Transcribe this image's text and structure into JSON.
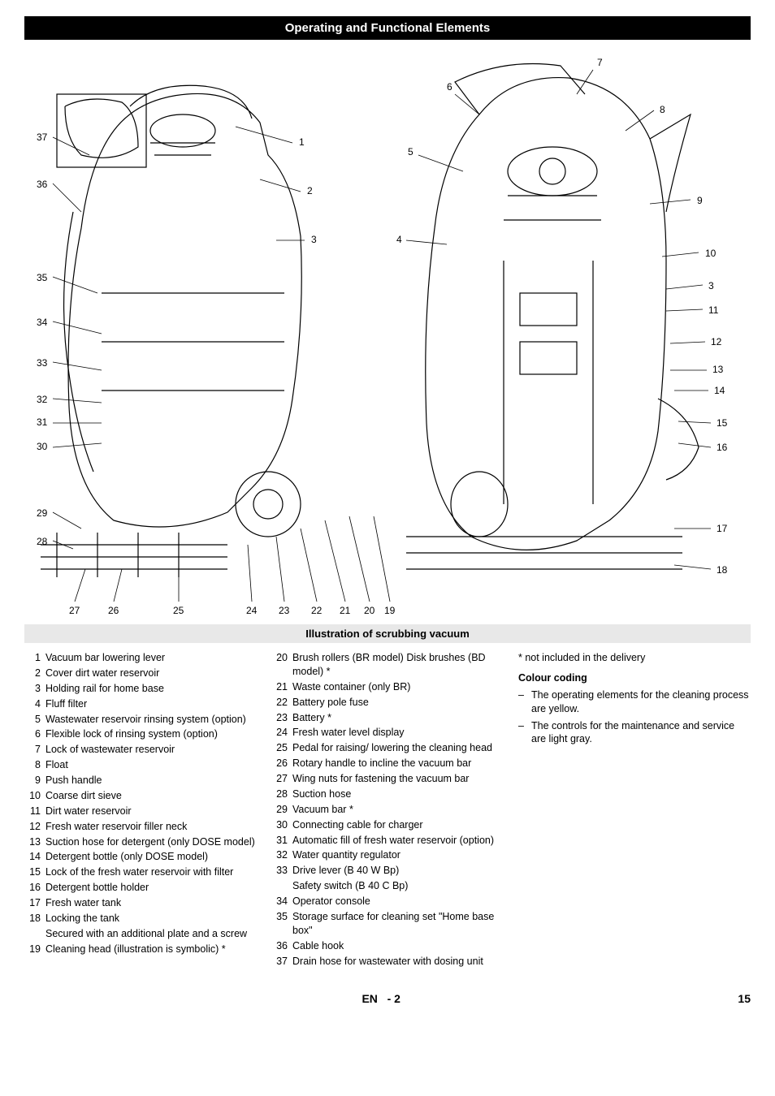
{
  "header": {
    "title": "Operating and Functional Elements"
  },
  "subheader": {
    "title": "Illustration of scrubbing vacuum"
  },
  "callouts": {
    "left_side": [
      "37",
      "36",
      "35",
      "34",
      "33",
      "32",
      "31",
      "30",
      "29",
      "28",
      "27",
      "26",
      "25",
      "24",
      "23",
      "22",
      "21",
      "20",
      "19"
    ],
    "top_right": [
      "7",
      "6",
      "8",
      "5",
      "9",
      "4",
      "10",
      "3",
      "11",
      "12",
      "13",
      "14",
      "15",
      "16",
      "17",
      "18"
    ],
    "left_nums": [
      "1",
      "2",
      "3"
    ]
  },
  "legend_col1": [
    {
      "n": "1",
      "t": "Vacuum bar lowering lever"
    },
    {
      "n": "2",
      "t": "Cover dirt water reservoir"
    },
    {
      "n": "3",
      "t": "Holding rail for home base"
    },
    {
      "n": "4",
      "t": "Fluff filter"
    },
    {
      "n": "5",
      "t": "Wastewater reservoir rinsing system (option)"
    },
    {
      "n": "6",
      "t": "Flexible lock of rinsing system (option)"
    },
    {
      "n": "7",
      "t": "Lock of wastewater reservoir"
    },
    {
      "n": "8",
      "t": "Float"
    },
    {
      "n": "9",
      "t": "Push handle"
    },
    {
      "n": "10",
      "t": "Coarse dirt sieve"
    },
    {
      "n": "11",
      "t": "Dirt water reservoir"
    },
    {
      "n": "12",
      "t": "Fresh water reservoir filler neck"
    },
    {
      "n": "13",
      "t": "Suction hose for detergent (only DOSE model)"
    },
    {
      "n": "14",
      "t": "Detergent bottle (only DOSE model)"
    },
    {
      "n": "15",
      "t": "Lock of the fresh water reservoir with filter"
    },
    {
      "n": "16",
      "t": "Detergent bottle holder"
    },
    {
      "n": "17",
      "t": "Fresh water tank"
    },
    {
      "n": "18",
      "t": "Locking the tank",
      "sub": "Secured with an additional plate and a screw"
    },
    {
      "n": "19",
      "t": "Cleaning head (illustration is symbolic) *"
    }
  ],
  "legend_col2": [
    {
      "n": "20",
      "t": "Brush rollers (BR model) Disk brushes (BD model) *"
    },
    {
      "n": "21",
      "t": "Waste container (only BR)"
    },
    {
      "n": "22",
      "t": "Battery pole fuse"
    },
    {
      "n": "23",
      "t": "Battery *"
    },
    {
      "n": "24",
      "t": "Fresh water level display"
    },
    {
      "n": "25",
      "t": "Pedal for raising/ lowering the cleaning head"
    },
    {
      "n": "26",
      "t": "Rotary handle to incline the vacuum bar"
    },
    {
      "n": "27",
      "t": "Wing nuts for fastening the vacuum bar"
    },
    {
      "n": "28",
      "t": "Suction hose"
    },
    {
      "n": "29",
      "t": "Vacuum bar *"
    },
    {
      "n": "30",
      "t": "Connecting cable for charger"
    },
    {
      "n": "31",
      "t": "Automatic fill of fresh water reservoir (option)"
    },
    {
      "n": "32",
      "t": "Water quantity regulator"
    },
    {
      "n": "33",
      "t": "Drive lever (B 40 W Bp)",
      "sub": "Safety switch (B 40 C Bp)"
    },
    {
      "n": "34",
      "t": "Operator console"
    },
    {
      "n": "35",
      "t": "Storage surface for cleaning set \"Home base box\""
    },
    {
      "n": "36",
      "t": "Cable hook"
    },
    {
      "n": "37",
      "t": "Drain hose for wastewater with dosing unit"
    }
  ],
  "notes": {
    "asterisk": "* not included in the delivery",
    "colour_heading": "Colour coding",
    "bullets": [
      "The operating elements for the cleaning process are yellow.",
      "The controls for the maintenance and service are light gray."
    ]
  },
  "footer": {
    "lang": "EN",
    "sep": "-",
    "page_local": "2",
    "page_global": "15"
  }
}
